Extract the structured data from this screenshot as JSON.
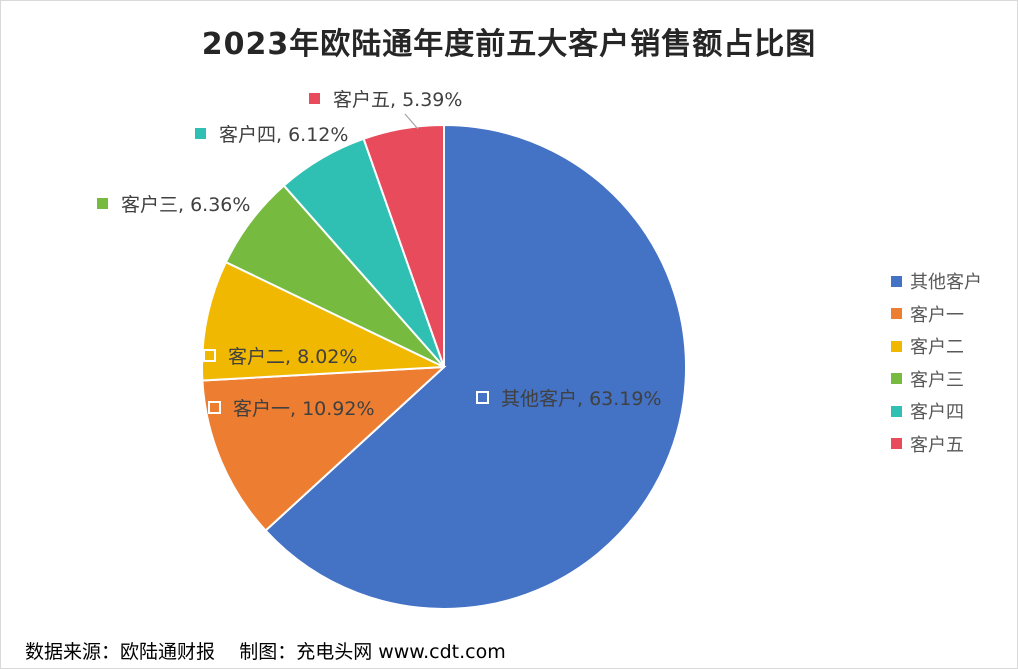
{
  "chart_data": {
    "type": "pie",
    "title": "2023年欧陆通年度前五大客户销售额占比图",
    "slices": [
      {
        "name": "其他客户",
        "value": 63.19,
        "label": "其他客户, 63.19%",
        "color": "#4472c4"
      },
      {
        "name": "客户一",
        "value": 10.92,
        "label": "客户一, 10.92%",
        "color": "#ed7d31"
      },
      {
        "name": "客户二",
        "value": 8.02,
        "label": "客户二, 8.02%",
        "color": "#f0b800"
      },
      {
        "name": "客户三",
        "value": 6.36,
        "label": "客户三, 6.36%",
        "color": "#76bb40"
      },
      {
        "name": "客户四",
        "value": 6.12,
        "label": "客户四, 6.12%",
        "color": "#2fc0b3"
      },
      {
        "name": "客户五",
        "value": 5.39,
        "label": "客户五, 5.39%",
        "color": "#e84b5c"
      }
    ],
    "legend_position": "right"
  },
  "footer": {
    "source": "数据来源：欧陆通财报",
    "credit": "制图：充电头网 www.cdt.com"
  }
}
